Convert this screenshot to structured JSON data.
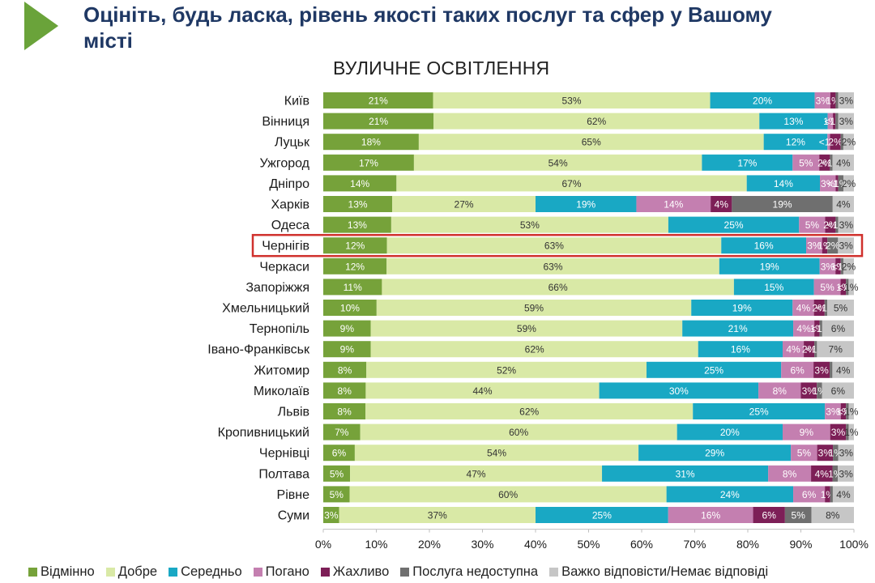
{
  "header": {
    "headline": "Оцініть, будь ласка, рівень якості таких послуг та сфер у Вашому місті",
    "subtitle": "ВУЛИЧНЕ ОСВІТЛЕННЯ"
  },
  "colors": {
    "accent_arrow": "#6aa33a",
    "headline": "#1f3864",
    "highlight_box": "#d0312d"
  },
  "chart_data": {
    "type": "bar",
    "orientation": "horizontal",
    "stacked": true,
    "title": "ВУЛИЧНЕ ОСВІТЛЕННЯ",
    "xlim": [
      0,
      100
    ],
    "x_ticks": [
      "0%",
      "10%",
      "20%",
      "30%",
      "40%",
      "50%",
      "60%",
      "70%",
      "80%",
      "90%",
      "100%"
    ],
    "grid": false,
    "legend_position": "bottom",
    "highlighted_category": "Чернігів",
    "categories": [
      "Київ",
      "Вінниця",
      "Луцьк",
      "Ужгород",
      "Дніпро",
      "Харків",
      "Одеса",
      "Чернігів",
      "Черкаси",
      "Запоріжжя",
      "Хмельницький",
      "Тернопіль",
      "Івано-Франківськ",
      "Житомир",
      "Миколаїв",
      "Львів",
      "Кропивницький",
      "Чернівці",
      "Полтава",
      "Рівне",
      "Суми"
    ],
    "series": [
      {
        "name": "Відмінно",
        "color": "#76a23a",
        "label_color": "#ffffff",
        "values": [
          21,
          21,
          18,
          17,
          14,
          13,
          13,
          12,
          12,
          11,
          10,
          9,
          9,
          8,
          8,
          8,
          7,
          6,
          5,
          5,
          3
        ],
        "labels": [
          "21%",
          "21%",
          "18%",
          "17%",
          "14%",
          "13%",
          "13%",
          "12%",
          "12%",
          "11%",
          "10%",
          "9%",
          "9%",
          "8%",
          "8%",
          "8%",
          "7%",
          "6%",
          "5%",
          "5%",
          "3%"
        ]
      },
      {
        "name": "Добре",
        "color": "#d9e9a6",
        "label_color": "#333333",
        "values": [
          53,
          62,
          65,
          54,
          67,
          27,
          53,
          63,
          63,
          66,
          59,
          59,
          62,
          52,
          44,
          62,
          60,
          54,
          47,
          60,
          37
        ],
        "labels": [
          "53%",
          "62%",
          "65%",
          "54%",
          "67%",
          "27%",
          "53%",
          "63%",
          "63%",
          "66%",
          "59%",
          "59%",
          "62%",
          "52%",
          "44%",
          "62%",
          "60%",
          "54%",
          "47%",
          "60%",
          "37%"
        ]
      },
      {
        "name": "Середньо",
        "color": "#19a8c4",
        "label_color": "#ffffff",
        "values": [
          20,
          13,
          12,
          17,
          14,
          19,
          25,
          16,
          19,
          15,
          19,
          21,
          16,
          25,
          30,
          25,
          20,
          29,
          31,
          24,
          25
        ],
        "labels": [
          "20%",
          "13%",
          "12%",
          "17%",
          "14%",
          "19%",
          "25%",
          "16%",
          "19%",
          "15%",
          "19%",
          "21%",
          "16%",
          "25%",
          "30%",
          "25%",
          "20%",
          "29%",
          "31%",
          "24%",
          "25%"
        ]
      },
      {
        "name": "Погано",
        "color": "#c47fb0",
        "label_color": "#ffffff",
        "values": [
          3,
          1,
          0.5,
          5,
          3,
          14,
          5,
          3,
          3,
          5,
          4,
          4,
          4,
          6,
          8,
          3,
          9,
          5,
          8,
          6,
          16
        ],
        "labels": [
          "3%",
          "1%",
          "<1%",
          "5%",
          "3%",
          "14%",
          "5%",
          "3%",
          "3%",
          "5%",
          "4%",
          "4%",
          "4%",
          "6%",
          "8%",
          "3%",
          "9%",
          "5%",
          "8%",
          "6%",
          "16%"
        ]
      },
      {
        "name": "Жахливо",
        "color": "#7d1f57",
        "label_color": "#ffffff",
        "values": [
          1,
          0.5,
          2,
          2,
          0.5,
          4,
          2,
          1,
          1,
          1,
          2,
          1,
          2,
          3,
          3,
          1,
          3,
          3,
          4,
          1,
          6
        ],
        "labels": [
          "1%",
          "<1%",
          "2%",
          "2%",
          "<1%",
          "4%",
          "2%",
          "1%",
          "1%",
          "1%",
          "2%",
          "1%",
          "2%",
          "3%",
          "3%",
          "1%",
          "3%",
          "3%",
          "4%",
          "1%",
          "6%"
        ]
      },
      {
        "name": "Послуга недоступна",
        "color": "#6f6f6f",
        "label_color": "#ffffff",
        "values": [
          0.5,
          0.5,
          0.5,
          0.5,
          1,
          19,
          0.5,
          2,
          0.5,
          0.5,
          0.5,
          0.5,
          0.5,
          0.5,
          1,
          0.5,
          0.5,
          1,
          1,
          0.5,
          5
        ],
        "labels": [
          "",
          "",
          "",
          "<1%",
          "1%",
          "19%",
          "<1%",
          "2%",
          "<1%",
          "<1%",
          "<1%",
          "<1%",
          "<1%",
          "",
          "1%",
          "<1%",
          "",
          "1%",
          "1%",
          "",
          "5%"
        ]
      },
      {
        "name": "Важко відповісти/Немає відповіді",
        "color": "#c6c6c6",
        "label_color": "#333333",
        "values": [
          3,
          3,
          2,
          4,
          2,
          4,
          3,
          3,
          2,
          1,
          5,
          6,
          7,
          4,
          6,
          1,
          1,
          3,
          3,
          4,
          8
        ],
        "labels": [
          "3%",
          "3%",
          "2%",
          "4%",
          "2%",
          "4%",
          "3%",
          "3%",
          "2%",
          "1%",
          "5%",
          "6%",
          "7%",
          "4%",
          "6%",
          "1%",
          "1%",
          "3%",
          "3%",
          "4%",
          "8%"
        ]
      }
    ]
  }
}
